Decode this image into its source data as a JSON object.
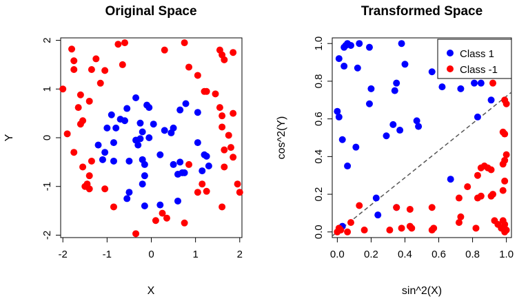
{
  "chart_data": [
    {
      "type": "scatter",
      "title": "Original Space",
      "xlabel": "X",
      "ylabel": "Y",
      "xlim": [
        -2.05,
        2.05
      ],
      "ylim": [
        -2.05,
        2.05
      ],
      "xticks": [
        -2,
        -1,
        0,
        1,
        2
      ],
      "yticks": [
        -2,
        -1,
        0,
        1,
        2
      ],
      "xtick_labels": [
        "-2",
        "-1",
        "0",
        "1",
        "2"
      ],
      "ytick_labels": [
        "-2",
        "-1",
        "0",
        "1",
        "2"
      ],
      "grid": false,
      "series": [
        {
          "color": "#0000ff",
          "points": [
            [
              -0.9,
              0.47
            ],
            [
              -0.7,
              0.38
            ],
            [
              -0.55,
              0.6
            ],
            [
              -0.35,
              0.82
            ],
            [
              -0.1,
              0.67
            ],
            [
              -0.05,
              0.62
            ],
            [
              -0.8,
              0.2
            ],
            [
              -0.6,
              0.35
            ],
            [
              -1.0,
              0.2
            ],
            [
              -1.2,
              -0.15
            ],
            [
              -1.05,
              -0.3
            ],
            [
              -1.1,
              -0.45
            ],
            [
              -0.85,
              -0.48
            ],
            [
              -0.5,
              -0.48
            ],
            [
              -0.35,
              -0.05
            ],
            [
              -0.25,
              -0.02
            ],
            [
              -0.2,
              0.12
            ],
            [
              -0.05,
              0.0
            ],
            [
              0.05,
              0.28
            ],
            [
              -0.3,
              -0.15
            ],
            [
              -0.2,
              -0.45
            ],
            [
              -0.15,
              -0.78
            ],
            [
              -0.2,
              -0.95
            ],
            [
              -0.5,
              -1.12
            ],
            [
              -0.55,
              -1.25
            ],
            [
              -0.15,
              -1.4
            ],
            [
              0.2,
              -1.38
            ],
            [
              0.6,
              -1.3
            ],
            [
              0.2,
              -0.35
            ],
            [
              0.45,
              0.1
            ],
            [
              0.5,
              -0.55
            ],
            [
              0.6,
              -0.75
            ],
            [
              0.65,
              -0.5
            ],
            [
              0.7,
              -0.72
            ],
            [
              0.75,
              -0.72
            ],
            [
              0.65,
              0.57
            ],
            [
              0.78,
              0.7
            ],
            [
              1.05,
              0.52
            ],
            [
              1.2,
              -0.35
            ],
            [
              1.25,
              -0.38
            ],
            [
              1.3,
              -0.58
            ],
            [
              1.15,
              -0.68
            ],
            [
              1.05,
              -0.1
            ],
            [
              0.3,
              0.15
            ],
            [
              -0.25,
              0.3
            ],
            [
              0.5,
              0.2
            ],
            [
              -0.85,
              -0.1
            ],
            [
              -0.15,
              -0.55
            ]
          ]
        },
        {
          "color": "#ff0000",
          "points": [
            [
              -1.8,
              1.82
            ],
            [
              -1.75,
              1.58
            ],
            [
              -1.75,
              1.4
            ],
            [
              -1.35,
              1.4
            ],
            [
              -1.25,
              1.62
            ],
            [
              -1.05,
              1.38
            ],
            [
              -0.75,
              1.92
            ],
            [
              -0.6,
              1.95
            ],
            [
              -0.65,
              1.5
            ],
            [
              0.3,
              1.8
            ],
            [
              0.75,
              1.95
            ],
            [
              1.55,
              1.8
            ],
            [
              1.6,
              1.7
            ],
            [
              1.65,
              1.6
            ],
            [
              1.85,
              1.75
            ],
            [
              0.85,
              1.45
            ],
            [
              1.05,
              1.28
            ],
            [
              1.25,
              0.95
            ],
            [
              1.2,
              0.95
            ],
            [
              1.45,
              0.9
            ],
            [
              -2.0,
              1.0
            ],
            [
              -1.6,
              0.88
            ],
            [
              -1.4,
              0.75
            ],
            [
              -1.65,
              0.62
            ],
            [
              -1.15,
              1.12
            ],
            [
              -1.55,
              0.35
            ],
            [
              -1.6,
              0.28
            ],
            [
              -1.9,
              0.08
            ],
            [
              -1.55,
              -0.6
            ],
            [
              -1.4,
              -0.78
            ],
            [
              -1.45,
              -0.95
            ],
            [
              -1.5,
              -1.0
            ],
            [
              -1.4,
              -1.05
            ],
            [
              -1.05,
              -1.05
            ],
            [
              -0.85,
              -1.42
            ],
            [
              -0.35,
              -1.97
            ],
            [
              0.1,
              -1.7
            ],
            [
              0.25,
              -1.55
            ],
            [
              0.35,
              -1.65
            ],
            [
              0.75,
              -1.75
            ],
            [
              1.15,
              -0.95
            ],
            [
              1.25,
              -1.1
            ],
            [
              1.05,
              -1.12
            ],
            [
              1.6,
              -1.42
            ],
            [
              1.95,
              -0.95
            ],
            [
              2.0,
              -1.12
            ],
            [
              1.65,
              -0.25
            ],
            [
              1.6,
              0.45
            ],
            [
              1.55,
              0.62
            ],
            [
              1.85,
              0.5
            ],
            [
              1.75,
              0.05
            ],
            [
              1.8,
              -0.2
            ],
            [
              1.85,
              -0.4
            ],
            [
              1.65,
              -0.6
            ],
            [
              1.6,
              0.22
            ],
            [
              0.85,
              -0.55
            ],
            [
              -1.35,
              -0.48
            ],
            [
              -1.75,
              -0.3
            ]
          ]
        }
      ]
    },
    {
      "type": "scatter",
      "title": "Transformed Space",
      "xlabel": "sin^2(X)",
      "ylabel": "cos^2(Y)",
      "xlim": [
        -0.03,
        1.03
      ],
      "ylim": [
        -0.03,
        1.03
      ],
      "xticks": [
        0.0,
        0.2,
        0.4,
        0.6,
        0.8,
        1.0
      ],
      "yticks": [
        0.0,
        0.2,
        0.4,
        0.6,
        0.8,
        1.0
      ],
      "xtick_labels": [
        "0.0",
        "0.2",
        "0.4",
        "0.6",
        "0.8",
        "1.0"
      ],
      "ytick_labels": [
        "0.0",
        "0.2",
        "0.4",
        "0.6",
        "0.8",
        "1.0"
      ],
      "grid": false,
      "legend_position": "top-right",
      "reference_line": {
        "slope": 0.72,
        "intercept": 0.0,
        "style": "dashed",
        "color": "#555555"
      },
      "series": [
        {
          "name": "Class 1",
          "color": "#0000ff",
          "points": [
            [
              0.01,
              0.92
            ],
            [
              0.04,
              0.98
            ],
            [
              0.05,
              0.99
            ],
            [
              0.06,
              1.0
            ],
            [
              0.08,
              0.99
            ],
            [
              0.13,
              1.0
            ],
            [
              0.19,
              0.98
            ],
            [
              0.38,
              1.0
            ],
            [
              0.04,
              0.88
            ],
            [
              0.12,
              0.87
            ],
            [
              0.4,
              0.89
            ],
            [
              0.56,
              0.85
            ],
            [
              0.35,
              0.79
            ],
            [
              0.34,
              0.75
            ],
            [
              0.2,
              0.76
            ],
            [
              0.62,
              0.77
            ],
            [
              0.73,
              0.76
            ],
            [
              0.81,
              0.79
            ],
            [
              0.85,
              0.79
            ],
            [
              0.19,
              0.68
            ],
            [
              0.0,
              0.64
            ],
            [
              0.01,
              0.61
            ],
            [
              0.91,
              0.7
            ],
            [
              0.83,
              0.61
            ],
            [
              0.47,
              0.59
            ],
            [
              0.48,
              0.56
            ],
            [
              0.33,
              0.57
            ],
            [
              0.37,
              0.54
            ],
            [
              0.29,
              0.51
            ],
            [
              0.03,
              0.49
            ],
            [
              0.11,
              0.45
            ],
            [
              0.06,
              0.35
            ],
            [
              0.67,
              0.28
            ],
            [
              0.23,
              0.18
            ],
            [
              0.02,
              0.02
            ],
            [
              0.03,
              0.03
            ],
            [
              0.24,
              0.09
            ],
            [
              0.35,
              0.13
            ]
          ]
        },
        {
          "name": "Class -1",
          "color": "#ff0000",
          "points": [
            [
              0.92,
              0.79
            ],
            [
              0.99,
              0.7
            ],
            [
              1.0,
              0.68
            ],
            [
              0.98,
              0.53
            ],
            [
              0.99,
              0.52
            ],
            [
              1.0,
              0.41
            ],
            [
              0.99,
              0.38
            ],
            [
              0.98,
              0.36
            ],
            [
              0.85,
              0.34
            ],
            [
              0.87,
              0.35
            ],
            [
              0.89,
              0.34
            ],
            [
              0.91,
              0.33
            ],
            [
              0.83,
              0.3
            ],
            [
              0.77,
              0.24
            ],
            [
              0.99,
              0.27
            ],
            [
              0.98,
              0.22
            ],
            [
              0.83,
              0.18
            ],
            [
              0.85,
              0.19
            ],
            [
              0.91,
              0.19
            ],
            [
              0.72,
              0.18
            ],
            [
              0.13,
              0.14
            ],
            [
              0.35,
              0.13
            ],
            [
              0.43,
              0.12
            ],
            [
              0.56,
              0.13
            ],
            [
              0.93,
              0.06
            ],
            [
              0.95,
              0.04
            ],
            [
              0.97,
              0.02
            ],
            [
              0.98,
              0.06
            ],
            [
              0.99,
              0.04
            ],
            [
              1.0,
              0.01
            ],
            [
              0.99,
              0.0
            ],
            [
              0.73,
              0.08
            ],
            [
              0.72,
              0.05
            ],
            [
              0.82,
              0.02
            ],
            [
              0.57,
              0.02
            ],
            [
              0.56,
              0.01
            ],
            [
              0.43,
              0.03
            ],
            [
              0.38,
              0.02
            ],
            [
              0.31,
              0.01
            ],
            [
              0.16,
              0.01
            ],
            [
              0.08,
              0.05
            ],
            [
              0.06,
              0.0
            ],
            [
              0.02,
              0.01
            ],
            [
              0.0,
              0.0
            ],
            [
              0.01,
              0.02
            ],
            [
              0.44,
              0.02
            ],
            [
              0.92,
              0.2
            ]
          ]
        }
      ]
    }
  ]
}
